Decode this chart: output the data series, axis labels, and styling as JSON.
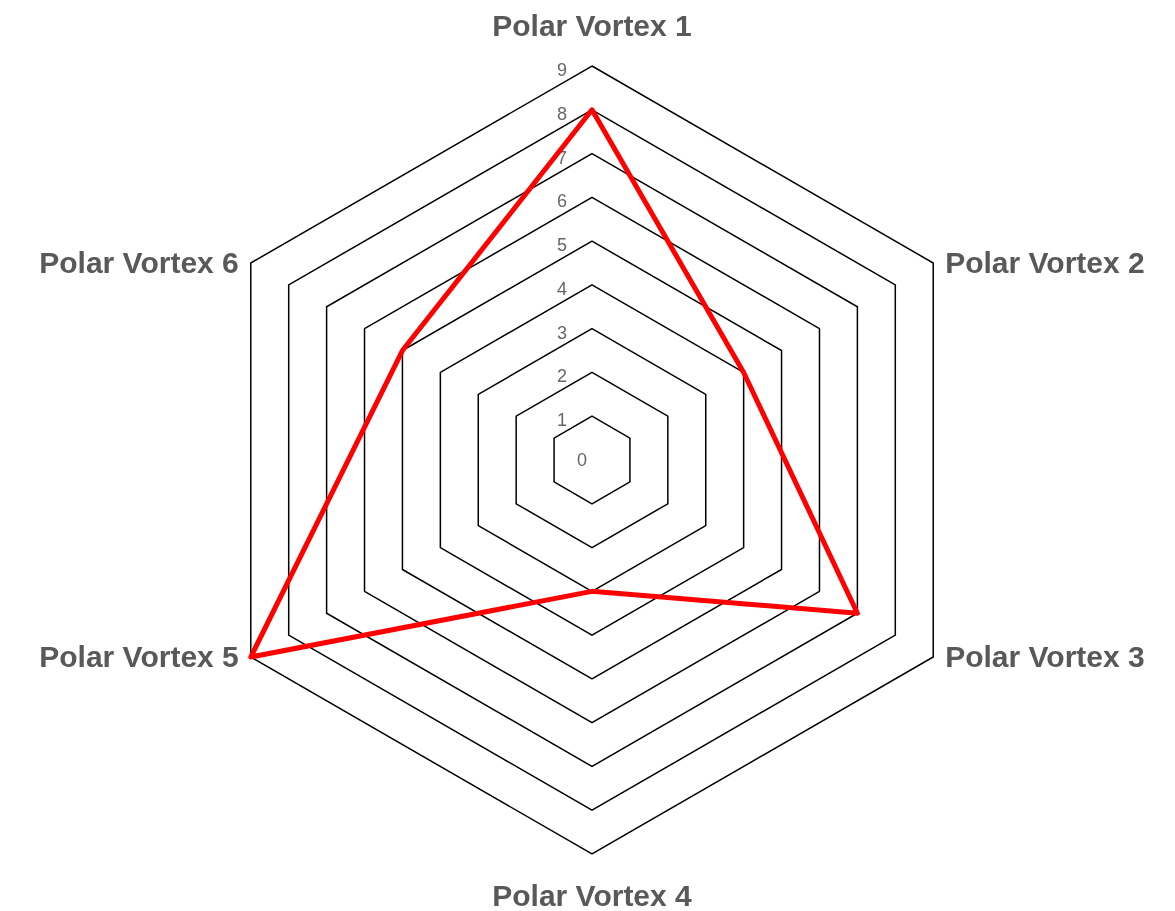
{
  "chart_data": {
    "type": "radar",
    "categories": [
      "Polar Vortex 1",
      "Polar Vortex 2",
      "Polar Vortex 3",
      "Polar Vortex 4",
      "Polar Vortex 5",
      "Polar Vortex 6"
    ],
    "series": [
      {
        "color": "#ff0000",
        "values": [
          8,
          4,
          7,
          3,
          9,
          5
        ]
      }
    ],
    "ylim": [
      0,
      9
    ],
    "yticks": [
      0,
      1,
      2,
      3,
      4,
      5,
      6,
      7,
      8,
      9
    ],
    "grid": true
  }
}
